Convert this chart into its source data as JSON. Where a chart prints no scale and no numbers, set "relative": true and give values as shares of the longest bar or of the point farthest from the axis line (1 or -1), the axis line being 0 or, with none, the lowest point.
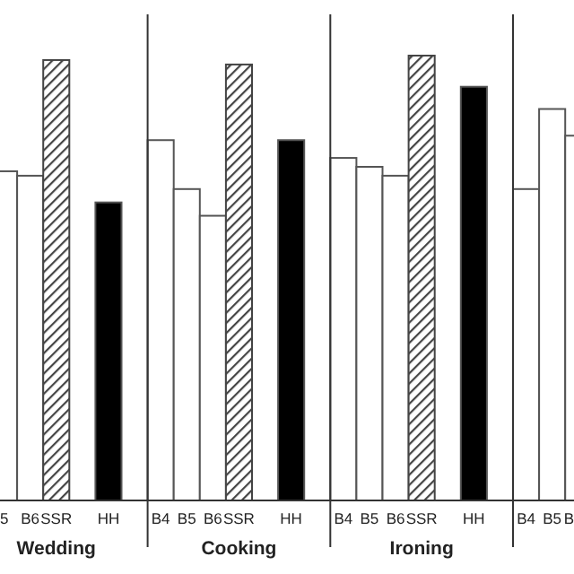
{
  "chart_data": {
    "type": "bar",
    "relative": true,
    "categories": [
      "5",
      "B6",
      "SSR",
      null,
      "HH",
      null,
      "B4",
      "B5",
      "B6",
      "SSR",
      null,
      "HH",
      null,
      "B4",
      "B5",
      "B6",
      "SSR",
      null,
      "HH",
      null,
      "B4",
      "B5",
      "B"
    ],
    "values": [
      0.74,
      0.73,
      0.99,
      null,
      0.67,
      null,
      0.81,
      0.7,
      0.64,
      0.98,
      null,
      0.81,
      null,
      0.77,
      0.75,
      0.73,
      1,
      null,
      0.93,
      null,
      0.7,
      0.88,
      0.82
    ],
    "colors": [
      "#ffffff",
      "#ffffff",
      "#444444",
      null,
      "#000000",
      null,
      "#ffffff",
      "#ffffff",
      "#ffffff",
      "#444444",
      null,
      "#000000",
      null,
      "#ffffff",
      "#ffffff",
      "#ffffff",
      "#444444",
      null,
      "#000000",
      null,
      "#ffffff",
      "#ffffff",
      "#ffffff"
    ],
    "annotations": [
      "Wedding",
      "Cooking",
      "Ironing"
    ]
  }
}
